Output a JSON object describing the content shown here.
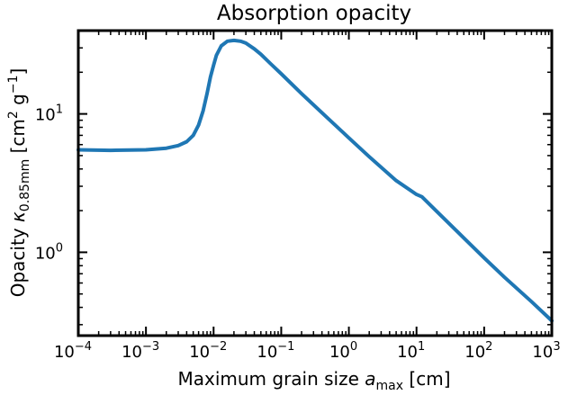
{
  "chart_data": {
    "type": "line",
    "title": "Absorption opacity",
    "xlabel": {
      "main": "Maximum grain size ",
      "var": "a",
      "sub": "max",
      "unit": " [cm]"
    },
    "ylabel": {
      "main": "Opacity ",
      "var": "κ",
      "sub": "0.85mm",
      "unit_open": " [cm",
      "sup1": "2",
      "mid": " g",
      "sup2": "−1",
      "unit_close": "]"
    },
    "xscale": "log",
    "yscale": "log",
    "xlim": [
      0.0001,
      1000
    ],
    "ylim": [
      0.25,
      40
    ],
    "xtick_exponents": [
      "−4",
      "−3",
      "−2",
      "−1",
      "0",
      "1",
      "2",
      "3"
    ],
    "ytick_exponents": [
      "0",
      "1"
    ],
    "grid": false,
    "line_color": "#1f77b4",
    "series": [
      {
        "x": [
          0.0001,
          0.0003,
          0.001,
          0.002,
          0.003,
          0.004,
          0.005,
          0.006,
          0.007,
          0.008,
          0.009,
          0.01,
          0.011,
          0.013,
          0.016,
          0.02,
          0.025,
          0.03,
          0.04,
          0.05,
          0.07,
          0.1,
          0.2,
          0.5,
          1,
          2,
          5,
          10,
          12,
          20,
          50,
          100,
          200,
          500,
          1000
        ],
        "y": [
          5.5,
          5.45,
          5.5,
          5.65,
          5.9,
          6.3,
          7.0,
          8.3,
          10.5,
          14.0,
          18.5,
          22.5,
          26.5,
          31.0,
          33.5,
          34.0,
          33.5,
          32.5,
          29.5,
          27.0,
          23.0,
          19.5,
          14.0,
          9.2,
          6.7,
          4.9,
          3.3,
          2.62,
          2.52,
          1.97,
          1.27,
          0.91,
          0.66,
          0.44,
          0.32
        ]
      }
    ]
  }
}
